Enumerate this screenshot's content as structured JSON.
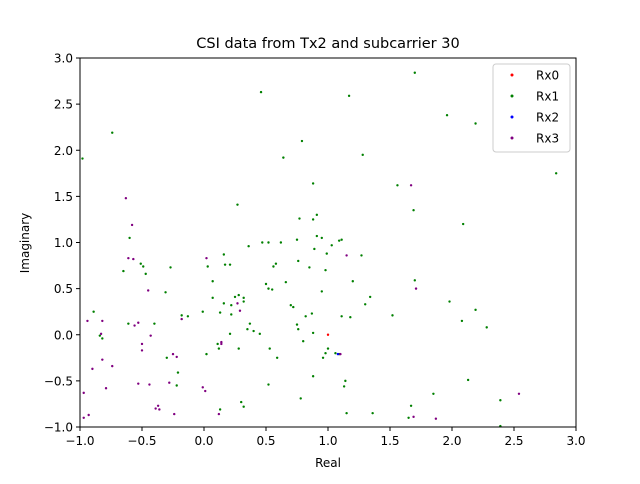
{
  "chart_data": {
    "type": "scatter",
    "title": "CSI data from Tx2 and subcarrier 30",
    "xlabel": "Real",
    "ylabel": "Imaginary",
    "xlim": [
      -1.0,
      3.0
    ],
    "ylim": [
      -1.0,
      3.0
    ],
    "xticks": [
      -1.0,
      -0.5,
      0.0,
      0.5,
      1.0,
      1.5,
      2.0,
      2.5,
      3.0
    ],
    "yticks": [
      -1.0,
      -0.5,
      0.0,
      0.5,
      1.0,
      1.5,
      2.0,
      2.5,
      3.0
    ],
    "xtick_labels": [
      "−1.0",
      "−0.5",
      "0.0",
      "0.5",
      "1.0",
      "1.5",
      "2.0",
      "2.5",
      "3.0"
    ],
    "ytick_labels": [
      "−1.0",
      "−0.5",
      "0.0",
      "0.5",
      "1.0",
      "1.5",
      "2.0",
      "2.5",
      "3.0"
    ],
    "grid": false,
    "legend_position": "top-right",
    "series": [
      {
        "name": "Rx0",
        "color": "#ff0000",
        "points": [
          [
            1.0,
            0.0
          ]
        ]
      },
      {
        "name": "Rx1",
        "color": "#008000",
        "points": [
          [
            -0.98,
            1.91
          ],
          [
            -0.74,
            2.19
          ],
          [
            0.46,
            2.63
          ],
          [
            1.17,
            2.59
          ],
          [
            1.7,
            2.84
          ],
          [
            1.96,
            2.38
          ],
          [
            2.19,
            2.29
          ],
          [
            0.79,
            2.1
          ],
          [
            0.64,
            1.92
          ],
          [
            1.28,
            1.95
          ],
          [
            0.88,
            1.64
          ],
          [
            1.56,
            1.62
          ],
          [
            2.84,
            1.75
          ],
          [
            0.27,
            1.41
          ],
          [
            1.69,
            1.35
          ],
          [
            2.09,
            1.2
          ],
          [
            0.77,
            1.26
          ],
          [
            0.88,
            1.25
          ],
          [
            0.91,
            1.3
          ],
          [
            -0.6,
            1.05
          ],
          [
            0.36,
            0.96
          ],
          [
            0.47,
            1.0
          ],
          [
            0.52,
            1.0
          ],
          [
            0.62,
            1.0
          ],
          [
            0.75,
            1.03
          ],
          [
            0.91,
            1.07
          ],
          [
            0.95,
            1.05
          ],
          [
            1.03,
            0.97
          ],
          [
            1.09,
            1.02
          ],
          [
            1.11,
            1.03
          ],
          [
            0.89,
            0.93
          ],
          [
            0.99,
            0.88
          ],
          [
            1.27,
            0.86
          ],
          [
            0.56,
            0.74
          ],
          [
            0.58,
            0.77
          ],
          [
            0.76,
            0.8
          ],
          [
            0.66,
            0.57
          ],
          [
            0.85,
            0.73
          ],
          [
            0.98,
            0.7
          ],
          [
            1.2,
            0.58
          ],
          [
            1.7,
            0.59
          ],
          [
            -0.51,
            0.77
          ],
          [
            -0.49,
            0.74
          ],
          [
            -0.47,
            0.66
          ],
          [
            -0.27,
            0.73
          ],
          [
            0.03,
            0.74
          ],
          [
            0.16,
            0.87
          ],
          [
            0.17,
            0.76
          ],
          [
            0.21,
            0.76
          ],
          [
            -0.65,
            0.69
          ],
          [
            0.07,
            0.58
          ],
          [
            0.5,
            0.55
          ],
          [
            -0.31,
            0.46
          ],
          [
            -0.18,
            0.21
          ],
          [
            -0.13,
            0.2
          ],
          [
            -0.01,
            0.25
          ],
          [
            0.07,
            0.4
          ],
          [
            0.16,
            0.34
          ],
          [
            0.22,
            0.22
          ],
          [
            0.25,
            0.41
          ],
          [
            0.28,
            0.43
          ],
          [
            0.32,
            0.4
          ],
          [
            0.32,
            0.36
          ],
          [
            0.22,
            0.32
          ],
          [
            0.13,
            0.24
          ],
          [
            0.52,
            0.5
          ],
          [
            0.55,
            0.49
          ],
          [
            0.7,
            0.32
          ],
          [
            0.72,
            0.3
          ],
          [
            0.82,
            0.2
          ],
          [
            0.87,
            0.23
          ],
          [
            0.95,
            0.47
          ],
          [
            1.11,
            0.2
          ],
          [
            1.18,
            0.19
          ],
          [
            1.3,
            0.33
          ],
          [
            1.34,
            0.41
          ],
          [
            1.52,
            0.21
          ],
          [
            1.98,
            0.36
          ],
          [
            2.08,
            0.15
          ],
          [
            2.19,
            0.27
          ],
          [
            2.28,
            0.08
          ],
          [
            -0.89,
            0.25
          ],
          [
            -0.82,
            -0.04
          ],
          [
            -0.84,
            -0.01
          ],
          [
            -0.61,
            0.12
          ],
          [
            -0.4,
            0.12
          ],
          [
            0.75,
            0.11
          ],
          [
            0.76,
            0.06
          ],
          [
            0.88,
            0.02
          ],
          [
            0.96,
            -0.25
          ],
          [
            0.98,
            -0.2
          ],
          [
            1.0,
            -0.15
          ],
          [
            1.06,
            -0.2
          ],
          [
            1.09,
            -0.21
          ],
          [
            0.28,
            -0.15
          ],
          [
            0.4,
            0.04
          ],
          [
            0.45,
            0.01
          ],
          [
            0.53,
            -0.15
          ],
          [
            0.59,
            -0.25
          ],
          [
            0.8,
            -0.07
          ],
          [
            0.13,
            -0.81
          ],
          [
            0.3,
            -0.73
          ],
          [
            0.32,
            -0.78
          ],
          [
            0.52,
            -0.54
          ],
          [
            0.78,
            -0.69
          ],
          [
            0.88,
            -0.45
          ],
          [
            1.13,
            -0.56
          ],
          [
            1.14,
            -0.5
          ],
          [
            1.15,
            -0.85
          ],
          [
            1.36,
            -0.85
          ],
          [
            1.65,
            -0.9
          ],
          [
            1.67,
            -0.77
          ],
          [
            1.85,
            -0.64
          ],
          [
            2.13,
            -0.49
          ],
          [
            2.39,
            -0.71
          ],
          [
            2.39,
            -0.99
          ],
          [
            -0.21,
            -0.41
          ],
          [
            -0.22,
            -0.55
          ],
          [
            -0.3,
            -0.25
          ],
          [
            0.37,
            0.12
          ],
          [
            0.35,
            0.06
          ],
          [
            0.21,
            0.01
          ],
          [
            0.11,
            -0.1
          ],
          [
            0.12,
            -0.15
          ],
          [
            0.02,
            -0.21
          ]
        ]
      },
      {
        "name": "Rx2",
        "color": "#0000ff",
        "points": [
          [
            1.08,
            -0.21
          ]
        ]
      },
      {
        "name": "Rx3",
        "color": "#800080",
        "points": [
          [
            -0.63,
            1.48
          ],
          [
            -0.58,
            1.19
          ],
          [
            -0.61,
            0.83
          ],
          [
            -0.57,
            0.82
          ],
          [
            -0.45,
            0.48
          ],
          [
            0.02,
            0.83
          ],
          [
            -0.97,
            -0.9
          ],
          [
            -0.93,
            -0.87
          ],
          [
            -0.97,
            -0.63
          ],
          [
            -0.9,
            -0.37
          ],
          [
            -0.82,
            -0.27
          ],
          [
            -0.79,
            -0.58
          ],
          [
            -0.74,
            -0.34
          ],
          [
            -0.53,
            -0.53
          ],
          [
            -0.44,
            -0.54
          ],
          [
            -0.5,
            -0.17
          ],
          [
            -0.5,
            -0.1
          ],
          [
            -0.43,
            -0.01
          ],
          [
            -0.28,
            -0.52
          ],
          [
            -0.37,
            -0.77
          ],
          [
            -0.39,
            -0.8
          ],
          [
            -0.36,
            -0.81
          ],
          [
            -0.24,
            -0.86
          ],
          [
            -0.01,
            -0.57
          ],
          [
            0.01,
            -0.61
          ],
          [
            0.14,
            -0.1
          ],
          [
            0.14,
            -0.08
          ],
          [
            0.12,
            -0.86
          ],
          [
            -0.94,
            0.15
          ],
          [
            -0.83,
            0.01
          ],
          [
            -0.82,
            0.15
          ],
          [
            -0.56,
            0.1
          ],
          [
            -0.53,
            0.13
          ],
          [
            -0.18,
            0.17
          ],
          [
            -0.25,
            -0.21
          ],
          [
            -0.22,
            -0.24
          ],
          [
            0.27,
            0.34
          ],
          [
            0.29,
            0.26
          ],
          [
            1.67,
            1.62
          ],
          [
            1.71,
            0.5
          ],
          [
            1.15,
            0.86
          ],
          [
            1.1,
            -0.21
          ],
          [
            1.69,
            -0.89
          ],
          [
            1.87,
            -0.91
          ],
          [
            2.54,
            -0.64
          ]
        ]
      }
    ]
  }
}
